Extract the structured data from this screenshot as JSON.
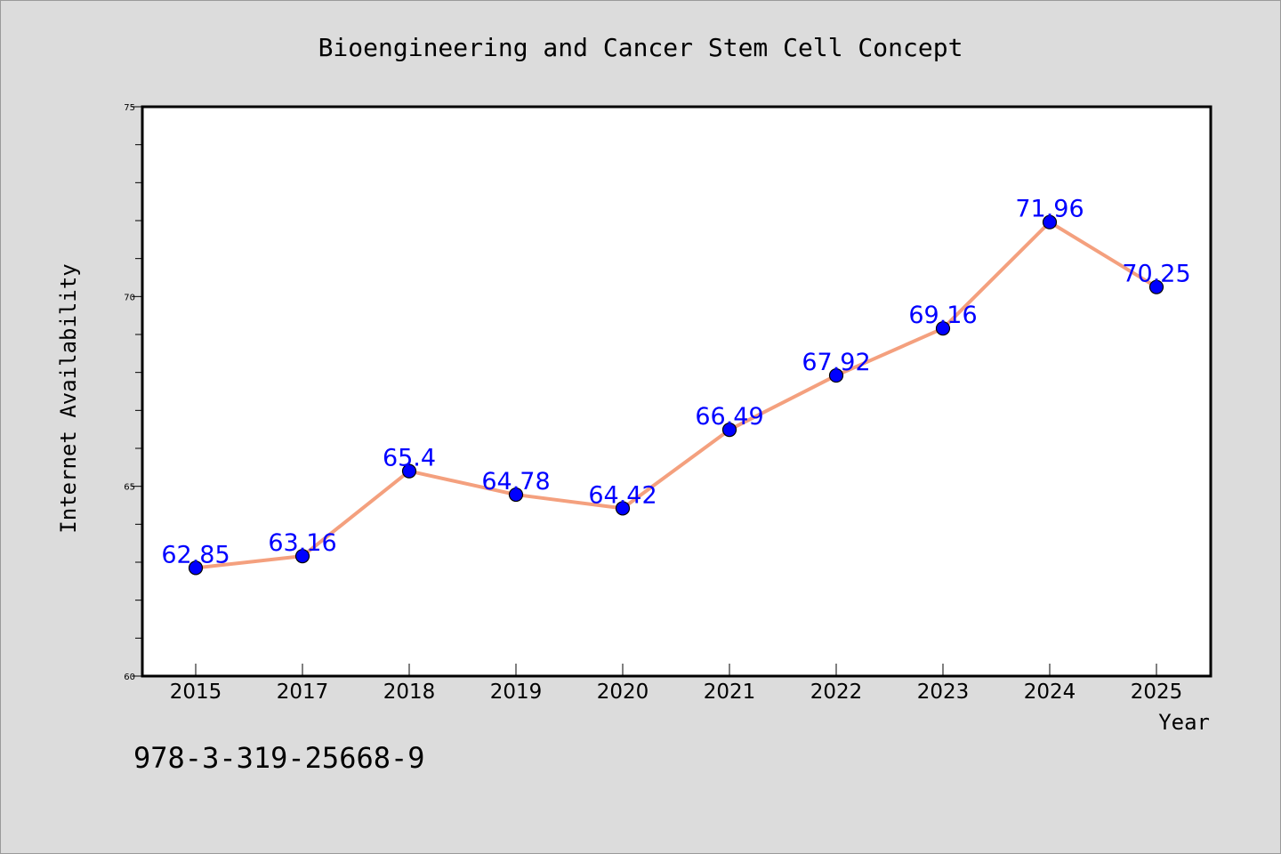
{
  "chart_data": {
    "type": "line",
    "title": "Bioengineering and Cancer Stem Cell Concept",
    "xlabel": "Year",
    "ylabel": "Internet Availability",
    "categories": [
      "2015",
      "2017",
      "2018",
      "2019",
      "2020",
      "2021",
      "2022",
      "2023",
      "2024",
      "2025"
    ],
    "values": [
      62.85,
      63.16,
      65.4,
      64.78,
      64.42,
      66.49,
      67.92,
      69.16,
      71.96,
      70.25
    ],
    "data_labels": [
      "62.85",
      "63.16",
      "65.4",
      "64.78",
      "64.42",
      "66.49",
      "67.92",
      "69.16",
      "71.96",
      "70.25"
    ],
    "ylim": [
      60,
      75
    ],
    "yticks": [
      60,
      65,
      70,
      75
    ],
    "ytick_labels": [
      "60",
      "65",
      "70",
      "75"
    ],
    "grid": false,
    "line_color": "#f4a07e",
    "marker_color": "#0000ff",
    "label_color": "#0000ff"
  },
  "footer": {
    "isbn": "978-3-319-25668-9"
  }
}
